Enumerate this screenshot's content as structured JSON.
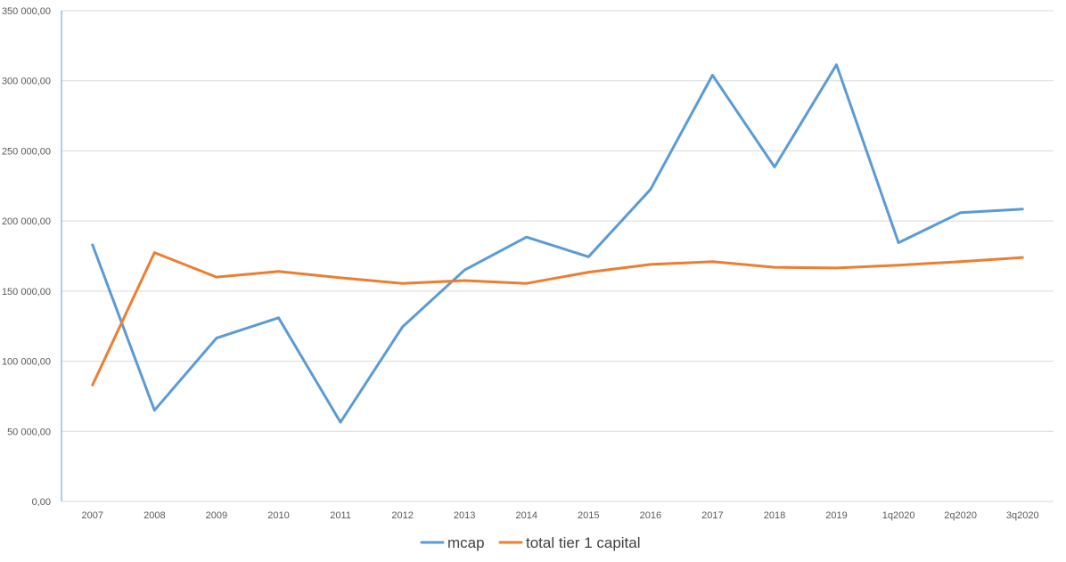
{
  "chart_data": {
    "type": "line",
    "categories": [
      "2007",
      "2008",
      "2009",
      "2010",
      "2011",
      "2012",
      "2013",
      "2014",
      "2015",
      "2016",
      "2017",
      "2018",
      "2019",
      "1q2020",
      "2q2020",
      "3q2020"
    ],
    "series": [
      {
        "name": "mcap",
        "color": "#5b9bd5",
        "values": [
          183000,
          65000,
          116500,
          131000,
          56500,
          124500,
          165000,
          188500,
          174500,
          222500,
          304000,
          238500,
          311500,
          184500,
          206000,
          208500
        ]
      },
      {
        "name": "total tier 1 capital",
        "color": "#ed7d31",
        "values": [
          83000,
          177500,
          160000,
          164000,
          159500,
          155500,
          157500,
          155500,
          163500,
          169000,
          171000,
          167000,
          166500,
          168500,
          171000,
          174000
        ]
      }
    ],
    "ylim": [
      0,
      350000
    ],
    "yticks": [
      "0,00",
      "50 000,00",
      "100 000,00",
      "150 000,00",
      "200 000,00",
      "250 000,00",
      "300 000,00",
      "350 000,00"
    ],
    "ytick_values": [
      0,
      50000,
      100000,
      150000,
      200000,
      250000,
      300000,
      350000
    ],
    "grid": true,
    "legend_position": "bottom"
  }
}
